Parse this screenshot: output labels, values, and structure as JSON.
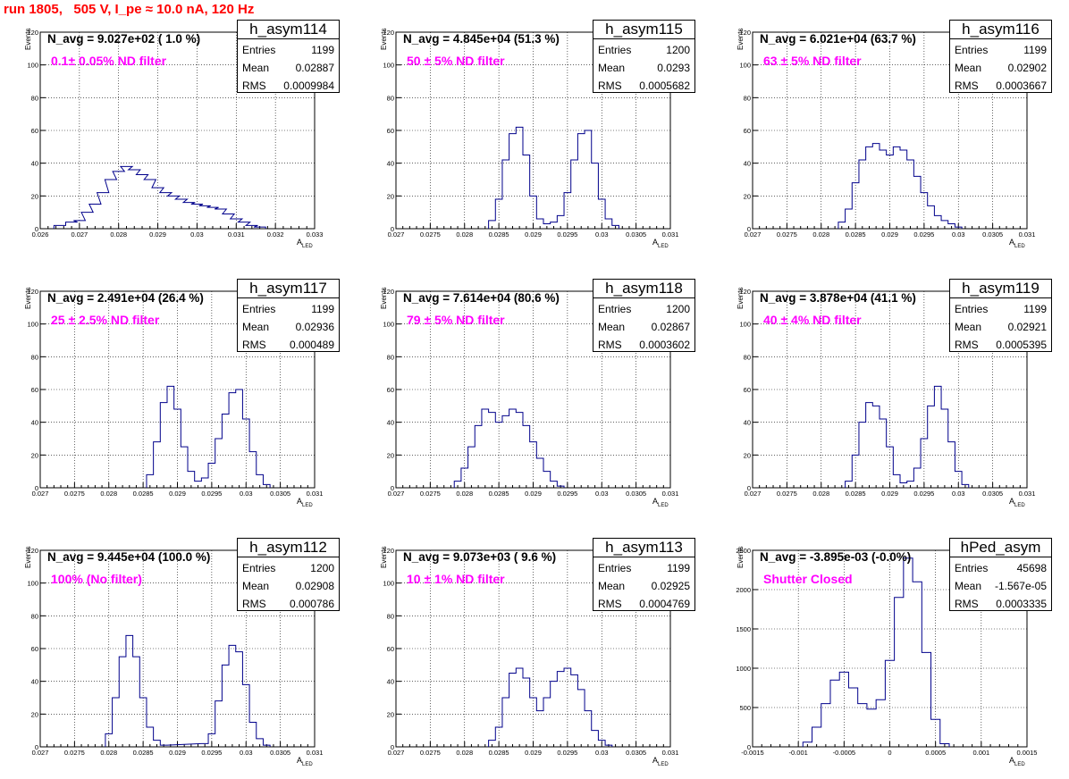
{
  "header": {
    "run_title": "run 1805,   505 V, I_pe ≈ 10.0 nA, 120 Hz"
  },
  "colors": {
    "histogram": "#00008b",
    "filter_text": "#ff00ff",
    "run_title": "#ff0000"
  },
  "axis_labels": {
    "y": "Events",
    "x_main": "A",
    "x_sub": "LED"
  },
  "stat_keys": {
    "entries": "Entries",
    "mean": "Mean",
    "rms": "RMS"
  },
  "chart_data": [
    {
      "type": "bar",
      "name": "h_asym114",
      "navg": "N_avg = 9.027e+02 ( 1.0 %)",
      "filter": "0.1± 0.05% ND filter",
      "stats": {
        "entries": "1199",
        "mean": "0.02887",
        "rms": "0.0009984"
      },
      "xlim": [
        0.026,
        0.033
      ],
      "ylim": [
        0,
        120
      ],
      "xticks": [
        "0.026",
        "0.027",
        "0.028",
        "0.029",
        "0.03",
        "0.031",
        "0.032",
        "0.033"
      ],
      "yticks": [
        "0",
        "20",
        "40",
        "60",
        "80",
        "100",
        "120"
      ],
      "x": [
        0.0265,
        0.0268,
        0.027,
        0.0272,
        0.0274,
        0.0276,
        0.0278,
        0.028,
        0.0282,
        0.0284,
        0.0286,
        0.0288,
        0.029,
        0.0292,
        0.0294,
        0.0296,
        0.0298,
        0.03,
        0.0302,
        0.0304,
        0.0306,
        0.0308,
        0.031,
        0.0312,
        0.0314,
        0.0316
      ],
      "y": [
        2,
        4,
        5,
        10,
        15,
        22,
        30,
        35,
        38,
        36,
        33,
        30,
        25,
        22,
        20,
        18,
        16,
        15,
        14,
        13,
        12,
        9,
        6,
        4,
        2,
        1
      ]
    },
    {
      "type": "bar",
      "name": "h_asym115",
      "navg": "N_avg = 4.845e+04 (51.3 %)",
      "filter": "50 ± 5% ND filter",
      "stats": {
        "entries": "1200",
        "mean": "0.0293",
        "rms": "0.0005682"
      },
      "xlim": [
        0.027,
        0.031
      ],
      "ylim": [
        0,
        120
      ],
      "xticks": [
        "0.027",
        "0.0275",
        "0.028",
        "0.0285",
        "0.029",
        "0.0295",
        "0.03",
        "0.0305",
        "0.031"
      ],
      "yticks": [
        "0",
        "20",
        "40",
        "60",
        "80",
        "100",
        "120"
      ],
      "x": [
        0.0284,
        0.0285,
        0.0286,
        0.0287,
        0.0288,
        0.0289,
        0.029,
        0.0291,
        0.0292,
        0.0293,
        0.0294,
        0.0295,
        0.0296,
        0.0297,
        0.0298,
        0.0299,
        0.03,
        0.0301,
        0.0302
      ],
      "y": [
        5,
        18,
        42,
        58,
        62,
        45,
        20,
        6,
        3,
        4,
        8,
        22,
        42,
        58,
        60,
        40,
        18,
        6,
        2
      ]
    },
    {
      "type": "bar",
      "name": "h_asym116",
      "navg": "N_avg = 6.021e+04 (63.7 %)",
      "filter": "63 ± 5% ND filter",
      "stats": {
        "entries": "1199",
        "mean": "0.02902",
        "rms": "0.0003667"
      },
      "xlim": [
        0.027,
        0.031
      ],
      "ylim": [
        0,
        120
      ],
      "xticks": [
        "0.027",
        "0.0275",
        "0.028",
        "0.0285",
        "0.029",
        "0.0295",
        "0.03",
        "0.0305",
        "0.031"
      ],
      "yticks": [
        "0",
        "20",
        "40",
        "60",
        "80",
        "100",
        "120"
      ],
      "x": [
        0.0283,
        0.0284,
        0.0285,
        0.0286,
        0.0287,
        0.0288,
        0.0289,
        0.029,
        0.0291,
        0.0292,
        0.0293,
        0.0294,
        0.0295,
        0.0296,
        0.0297,
        0.0298,
        0.0299,
        0.03
      ],
      "y": [
        4,
        12,
        28,
        42,
        50,
        52,
        48,
        45,
        50,
        48,
        42,
        32,
        22,
        14,
        8,
        5,
        3,
        1
      ]
    },
    {
      "type": "bar",
      "name": "h_asym117",
      "navg": "N_avg = 2.491e+04 (26.4 %)",
      "filter": "25 ± 2.5% ND filter",
      "stats": {
        "entries": "1199",
        "mean": "0.02936",
        "rms": "0.000489"
      },
      "xlim": [
        0.027,
        0.031
      ],
      "ylim": [
        0,
        120
      ],
      "xticks": [
        "0.027",
        "0.0275",
        "0.028",
        "0.0285",
        "0.029",
        "0.0295",
        "0.03",
        "0.0305",
        "0.031"
      ],
      "yticks": [
        "0",
        "20",
        "40",
        "60",
        "80",
        "100",
        "120"
      ],
      "x": [
        0.0286,
        0.0287,
        0.0288,
        0.0289,
        0.029,
        0.0291,
        0.0292,
        0.0293,
        0.0294,
        0.0295,
        0.0296,
        0.0297,
        0.0298,
        0.0299,
        0.03,
        0.0301,
        0.0302,
        0.0303
      ],
      "y": [
        8,
        28,
        52,
        62,
        48,
        25,
        10,
        4,
        6,
        15,
        30,
        45,
        58,
        60,
        42,
        22,
        8,
        2
      ]
    },
    {
      "type": "bar",
      "name": "h_asym118",
      "navg": "N_avg = 7.614e+04 (80.6 %)",
      "filter": "79 ± 5% ND filter",
      "stats": {
        "entries": "1200",
        "mean": "0.02867",
        "rms": "0.0003602"
      },
      "xlim": [
        0.027,
        0.031
      ],
      "ylim": [
        0,
        120
      ],
      "xticks": [
        "0.027",
        "0.0275",
        "0.028",
        "0.0285",
        "0.029",
        "0.0295",
        "0.03",
        "0.0305",
        "0.031"
      ],
      "yticks": [
        "0",
        "20",
        "40",
        "60",
        "80",
        "100",
        "120"
      ],
      "x": [
        0.0279,
        0.028,
        0.0281,
        0.0282,
        0.0283,
        0.0284,
        0.0285,
        0.0286,
        0.0287,
        0.0288,
        0.0289,
        0.029,
        0.0291,
        0.0292,
        0.0293,
        0.0294
      ],
      "y": [
        4,
        12,
        25,
        38,
        48,
        46,
        40,
        44,
        48,
        46,
        38,
        28,
        18,
        10,
        4,
        1
      ]
    },
    {
      "type": "bar",
      "name": "h_asym119",
      "navg": "N_avg = 3.878e+04 (41.1 %)",
      "filter": "40 ± 4% ND filter",
      "stats": {
        "entries": "1199",
        "mean": "0.02921",
        "rms": "0.0005395"
      },
      "xlim": [
        0.027,
        0.031
      ],
      "ylim": [
        0,
        120
      ],
      "xticks": [
        "0.027",
        "0.0275",
        "0.028",
        "0.0285",
        "0.029",
        "0.0295",
        "0.03",
        "0.0305",
        "0.031"
      ],
      "yticks": [
        "0",
        "20",
        "40",
        "60",
        "80",
        "100",
        "120"
      ],
      "x": [
        0.0284,
        0.0285,
        0.0286,
        0.0287,
        0.0288,
        0.0289,
        0.029,
        0.0291,
        0.0292,
        0.0293,
        0.0294,
        0.0295,
        0.0296,
        0.0297,
        0.0298,
        0.0299,
        0.03,
        0.0301
      ],
      "y": [
        4,
        20,
        40,
        52,
        50,
        42,
        25,
        8,
        3,
        4,
        12,
        30,
        50,
        62,
        48,
        28,
        10,
        2
      ]
    },
    {
      "type": "bar",
      "name": "h_asym112",
      "navg": "N_avg = 9.445e+04 (100.0 %)",
      "filter": "100% (No filter)",
      "stats": {
        "entries": "1200",
        "mean": "0.02908",
        "rms": "0.000786"
      },
      "xlim": [
        0.027,
        0.031
      ],
      "ylim": [
        0,
        120
      ],
      "xticks": [
        "0.027",
        "0.0275",
        "0.028",
        "0.0285",
        "0.029",
        "0.0295",
        "0.03",
        "0.0305",
        "0.031"
      ],
      "yticks": [
        "0",
        "20",
        "40",
        "60",
        "80",
        "100",
        "120"
      ],
      "x": [
        0.028,
        0.0281,
        0.0282,
        0.0283,
        0.0284,
        0.0285,
        0.0286,
        0.0287,
        0.0288,
        0.0294,
        0.0295,
        0.0296,
        0.0297,
        0.0298,
        0.0299,
        0.03,
        0.0301,
        0.0302,
        0.0303
      ],
      "y": [
        8,
        30,
        55,
        68,
        55,
        30,
        12,
        4,
        1,
        2,
        8,
        28,
        50,
        62,
        58,
        38,
        15,
        5,
        1
      ]
    },
    {
      "type": "bar",
      "name": "h_asym113",
      "navg": "N_avg = 9.073e+03 ( 9.6 %)",
      "filter": "10 ± 1% ND filter",
      "stats": {
        "entries": "1199",
        "mean": "0.02925",
        "rms": "0.0004769"
      },
      "xlim": [
        0.027,
        0.031
      ],
      "ylim": [
        0,
        120
      ],
      "xticks": [
        "0.027",
        "0.0275",
        "0.028",
        "0.0285",
        "0.029",
        "0.0295",
        "0.03",
        "0.0305",
        "0.031"
      ],
      "yticks": [
        "0",
        "20",
        "40",
        "60",
        "80",
        "100",
        "120"
      ],
      "x": [
        0.0284,
        0.0285,
        0.0286,
        0.0287,
        0.0288,
        0.0289,
        0.029,
        0.0291,
        0.0292,
        0.0293,
        0.0294,
        0.0295,
        0.0296,
        0.0297,
        0.0298,
        0.0299,
        0.03,
        0.0301
      ],
      "y": [
        4,
        12,
        30,
        45,
        48,
        42,
        30,
        22,
        30,
        40,
        46,
        48,
        44,
        35,
        22,
        10,
        4,
        1
      ]
    },
    {
      "type": "bar",
      "name": "hPed_asym",
      "navg": "N_avg = -3.895e-03 (-0.0%)",
      "filter": "Shutter Closed",
      "stats": {
        "entries": "45698",
        "mean": "-1.567e-05",
        "rms": "0.0003335"
      },
      "xlim": [
        -0.0015,
        0.0015
      ],
      "ylim": [
        0,
        2500
      ],
      "xticks": [
        "-0.0015",
        "-0.001",
        "-0.0005",
        "0",
        "0.0005",
        "0.001",
        "0.0015"
      ],
      "yticks": [
        "0",
        "500",
        "1000",
        "1500",
        "2000",
        "2500"
      ],
      "x": [
        -0.0009,
        -0.0008,
        -0.0007,
        -0.0006,
        -0.0005,
        -0.0004,
        -0.0003,
        -0.0002,
        -0.0001,
        0.0,
        0.0001,
        0.0002,
        0.0003,
        0.0004,
        0.0005,
        0.0006
      ],
      "y": [
        60,
        250,
        550,
        850,
        950,
        750,
        550,
        480,
        600,
        1100,
        1900,
        2400,
        2100,
        1200,
        350,
        40
      ]
    }
  ]
}
